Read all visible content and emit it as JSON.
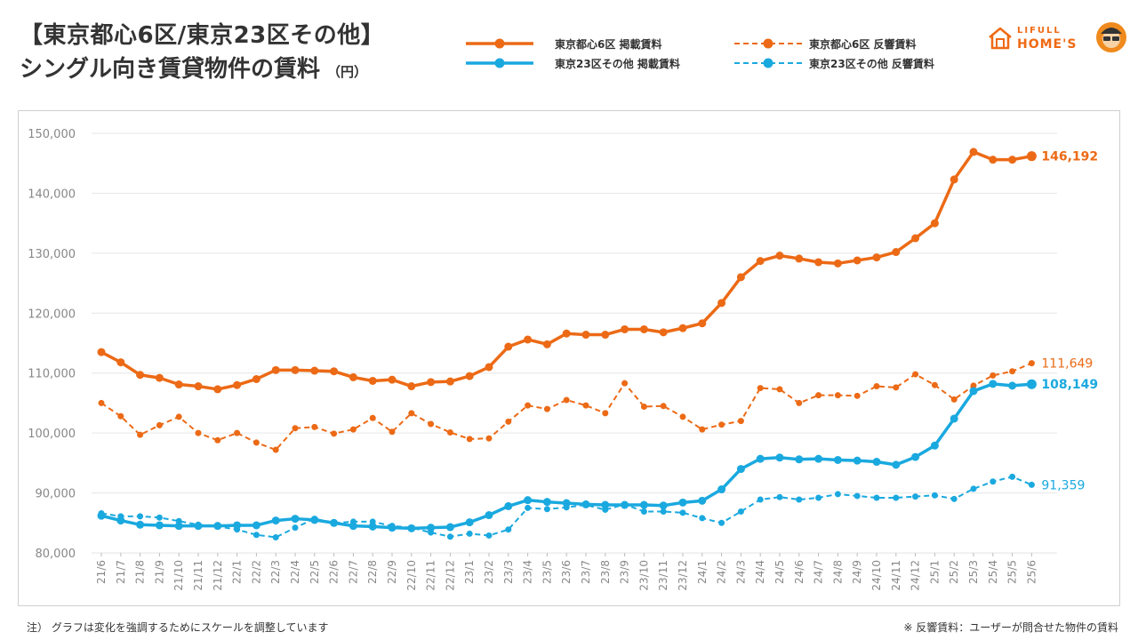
{
  "page": {
    "title_line1": "【東京都心6区/東京23区その他】",
    "title_line2": "シングル向き賃貸物件の賃料",
    "unit": "（円）",
    "note_left": "注）  グラフは変化を強調するためにスケールを調整しています",
    "note_right": "※ 反響賃料：ユーザーが問合せた物件の賃料",
    "logo_line1": "LIFULL",
    "logo_line2": "HOME'S"
  },
  "colors": {
    "orange": "#ec6a16",
    "blue": "#1aa9df",
    "grid": "#e6e6e6",
    "axis_text": "#888888"
  },
  "chart_data": {
    "type": "line",
    "x": [
      "21/6",
      "21/7",
      "21/8",
      "21/9",
      "21/10",
      "21/11",
      "21/12",
      "22/1",
      "22/2",
      "22/3",
      "22/4",
      "22/5",
      "22/6",
      "22/7",
      "22/8",
      "22/9",
      "22/10",
      "22/11",
      "22/12",
      "23/1",
      "23/2",
      "23/3",
      "23/4",
      "23/5",
      "23/6",
      "23/7",
      "23/8",
      "23/9",
      "23/10",
      "23/11",
      "23/12",
      "24/1",
      "24/2",
      "24/3",
      "24/4",
      "24/5",
      "24/6",
      "24/7",
      "24/8",
      "24/9",
      "24/10",
      "24/11",
      "24/12",
      "25/1",
      "25/2",
      "25/3",
      "25/4",
      "25/5",
      "25/6"
    ],
    "ylim": [
      80000,
      150000
    ],
    "yticks": [
      80000,
      90000,
      100000,
      110000,
      120000,
      130000,
      140000,
      150000
    ],
    "ytick_labels": [
      "80,000",
      "90,000",
      "100,000",
      "110,000",
      "120,000",
      "130,000",
      "140,000",
      "150,000"
    ],
    "grid": true,
    "legend_position": "top",
    "series": [
      {
        "name": "東京都心6区 掲載賃料",
        "color": "#ec6a16",
        "style": "solid",
        "end_label": "146,192",
        "values": [
          113500,
          111800,
          109700,
          109200,
          108100,
          107800,
          107300,
          108000,
          109000,
          110500,
          110500,
          110400,
          110300,
          109300,
          108700,
          108900,
          107800,
          108500,
          108600,
          109500,
          111000,
          114400,
          115600,
          114800,
          116600,
          116400,
          116400,
          117300,
          117300,
          116800,
          117500,
          118300,
          121700,
          126000,
          128700,
          129600,
          129100,
          128500,
          128300,
          128800,
          129300,
          130200,
          132500,
          135000,
          142300,
          146900,
          145600,
          145600,
          146192
        ]
      },
      {
        "name": "東京都心6区 反響賃料",
        "color": "#ec6a16",
        "style": "dashed",
        "end_label": "111,649",
        "values": [
          105000,
          102800,
          99700,
          101300,
          102700,
          100000,
          98800,
          100000,
          98400,
          97200,
          100800,
          101000,
          99900,
          100600,
          102500,
          100200,
          103300,
          101500,
          100100,
          99000,
          99100,
          101900,
          104600,
          104000,
          105500,
          104600,
          103300,
          108300,
          104400,
          104500,
          102700,
          100600,
          101400,
          102000,
          107500,
          107300,
          105000,
          106300,
          106300,
          106200,
          107800,
          107600,
          109800,
          108000,
          105600,
          107900,
          109600,
          110300,
          111649
        ]
      },
      {
        "name": "東京23区その他 掲載賃料",
        "color": "#1aa9df",
        "style": "solid",
        "end_label": "108,149",
        "values": [
          86200,
          85400,
          84700,
          84600,
          84500,
          84500,
          84500,
          84600,
          84600,
          85400,
          85700,
          85500,
          85000,
          84500,
          84400,
          84200,
          84100,
          84200,
          84300,
          85100,
          86300,
          87800,
          88800,
          88500,
          88300,
          88100,
          88000,
          88000,
          88000,
          87900,
          88400,
          88700,
          90600,
          94000,
          95700,
          95900,
          95600,
          95700,
          95500,
          95400,
          95200,
          94700,
          96000,
          97900,
          102400,
          107000,
          108200,
          107900,
          108149
        ]
      },
      {
        "name": "東京23区その他 反響賃料",
        "color": "#1aa9df",
        "style": "dashed",
        "end_label": "91,359",
        "values": [
          86600,
          86100,
          86100,
          85900,
          85300,
          84700,
          84400,
          83900,
          83000,
          82600,
          84200,
          85700,
          85000,
          85200,
          85200,
          84500,
          84200,
          83400,
          82700,
          83200,
          82900,
          83900,
          87500,
          87300,
          87600,
          88000,
          87200,
          88100,
          86900,
          86900,
          86700,
          85800,
          85000,
          86900,
          88900,
          89300,
          88900,
          89200,
          89800,
          89500,
          89200,
          89200,
          89400,
          89600,
          89000,
          90700,
          91900,
          92700,
          91359
        ]
      }
    ]
  }
}
